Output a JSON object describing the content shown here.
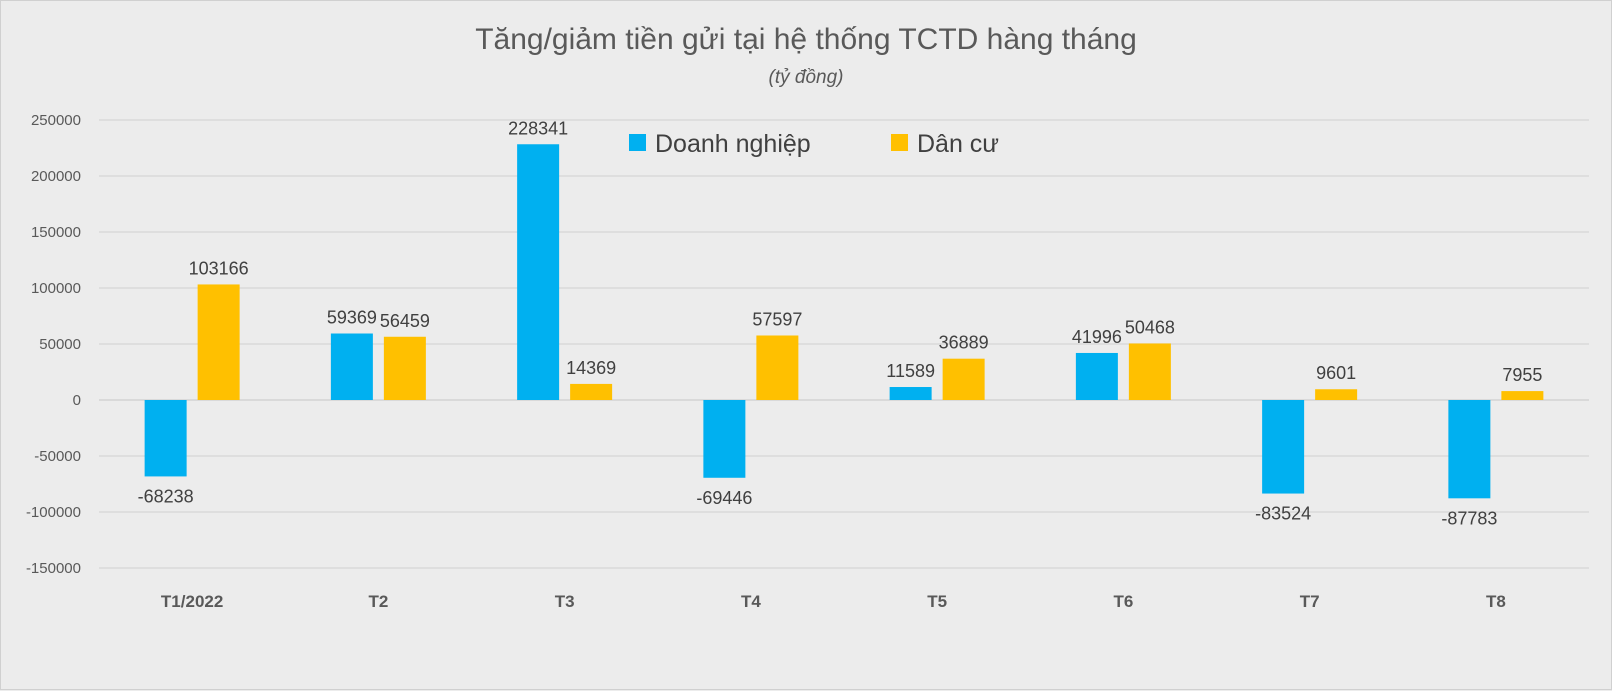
{
  "chart_data": {
    "type": "bar",
    "title": "Tăng/giảm tiền gửi tại hệ thống TCTD hàng tháng",
    "subtitle": "(tỷ đồng)",
    "xlabel": "",
    "ylabel": "",
    "categories": [
      "T1/2022",
      "T2",
      "T3",
      "T4",
      "T5",
      "T6",
      "T7",
      "T8"
    ],
    "series": [
      {
        "name": "Doanh nghiệp",
        "color": "#00b0f0",
        "values": [
          -68238,
          59369,
          228341,
          -69446,
          11589,
          41996,
          -83524,
          -87783
        ]
      },
      {
        "name": "Dân cư",
        "color": "#ffc000",
        "values": [
          103166,
          56459,
          14369,
          57597,
          36889,
          50468,
          9601,
          7955
        ]
      }
    ],
    "ylim": [
      -150000,
      250000
    ],
    "yticks": [
      250000,
      200000,
      150000,
      100000,
      50000,
      0,
      -50000,
      -100000,
      -150000
    ],
    "grid": true,
    "legend_position": "top-center"
  }
}
